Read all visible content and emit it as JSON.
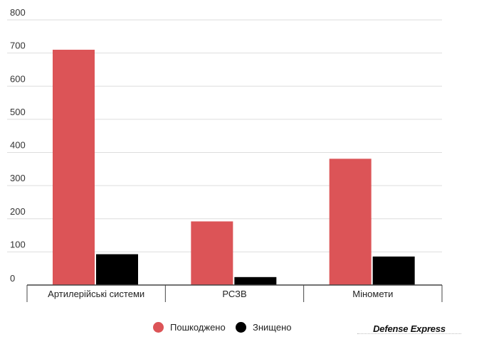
{
  "chart_data": {
    "type": "bar",
    "categories": [
      "Артилерійські системи",
      "РСЗВ",
      "Міномети"
    ],
    "series": [
      {
        "name": "Пошкоджено",
        "color": "#dc5457",
        "values": [
          710,
          192,
          381
        ]
      },
      {
        "name": "Знищено",
        "color": "#000000",
        "values": [
          93,
          24,
          86
        ]
      }
    ],
    "ylim": [
      0,
      800
    ],
    "yticks": [
      0,
      100,
      200,
      300,
      400,
      500,
      600,
      700,
      800
    ],
    "grid": true,
    "legend": "bottom-center"
  },
  "legend": {
    "items": [
      {
        "label": "Пошкоджено",
        "color": "#dc5457"
      },
      {
        "label": "Знищено",
        "color": "#000000"
      }
    ]
  },
  "brand": {
    "text": "Defense Express"
  }
}
